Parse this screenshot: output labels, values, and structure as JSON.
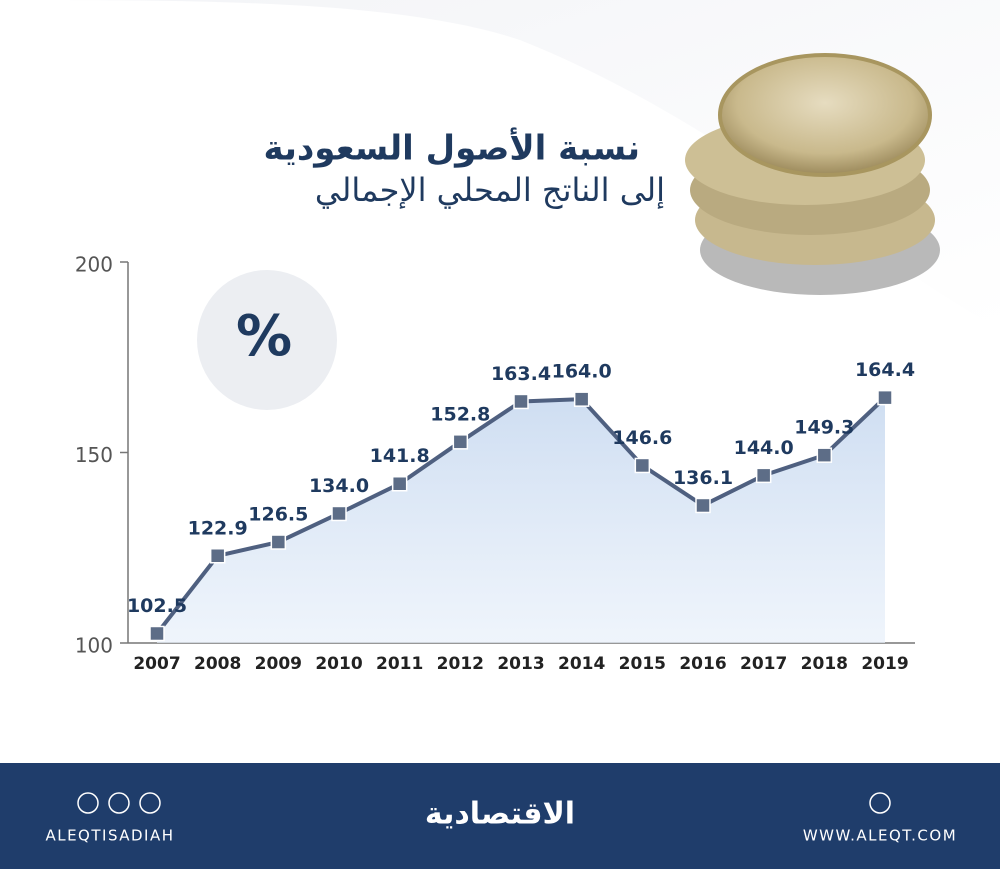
{
  "chart_data": {
    "type": "line",
    "title": "نسبة الأصول السعودية",
    "subtitle": "إلى الناتج المحلي الإجمالي",
    "unit_label": "%",
    "categories": [
      "2007",
      "2008",
      "2009",
      "2010",
      "2011",
      "2012",
      "2013",
      "2014",
      "2015",
      "2016",
      "2017",
      "2018",
      "2019"
    ],
    "values": [
      102.5,
      122.9,
      126.5,
      134.0,
      141.8,
      152.8,
      163.4,
      164.0,
      146.6,
      136.1,
      144.0,
      149.3,
      164.4
    ],
    "value_labels": [
      "102.5",
      "122.9",
      "126.5",
      "134.0",
      "141.8",
      "152.8",
      "163.4",
      "164.0",
      "146.6",
      "136.1",
      "144.0",
      "149.3",
      "164.4"
    ],
    "color": "#4f6080",
    "marker_color": "#5d6d87",
    "ylim": [
      100,
      200
    ],
    "yticks": [
      100,
      150,
      200
    ]
  },
  "footer": {
    "handle": "ALEQTISADIAH",
    "brand": "الاقتصادية",
    "website": "WWW.ALEQT.COM"
  }
}
